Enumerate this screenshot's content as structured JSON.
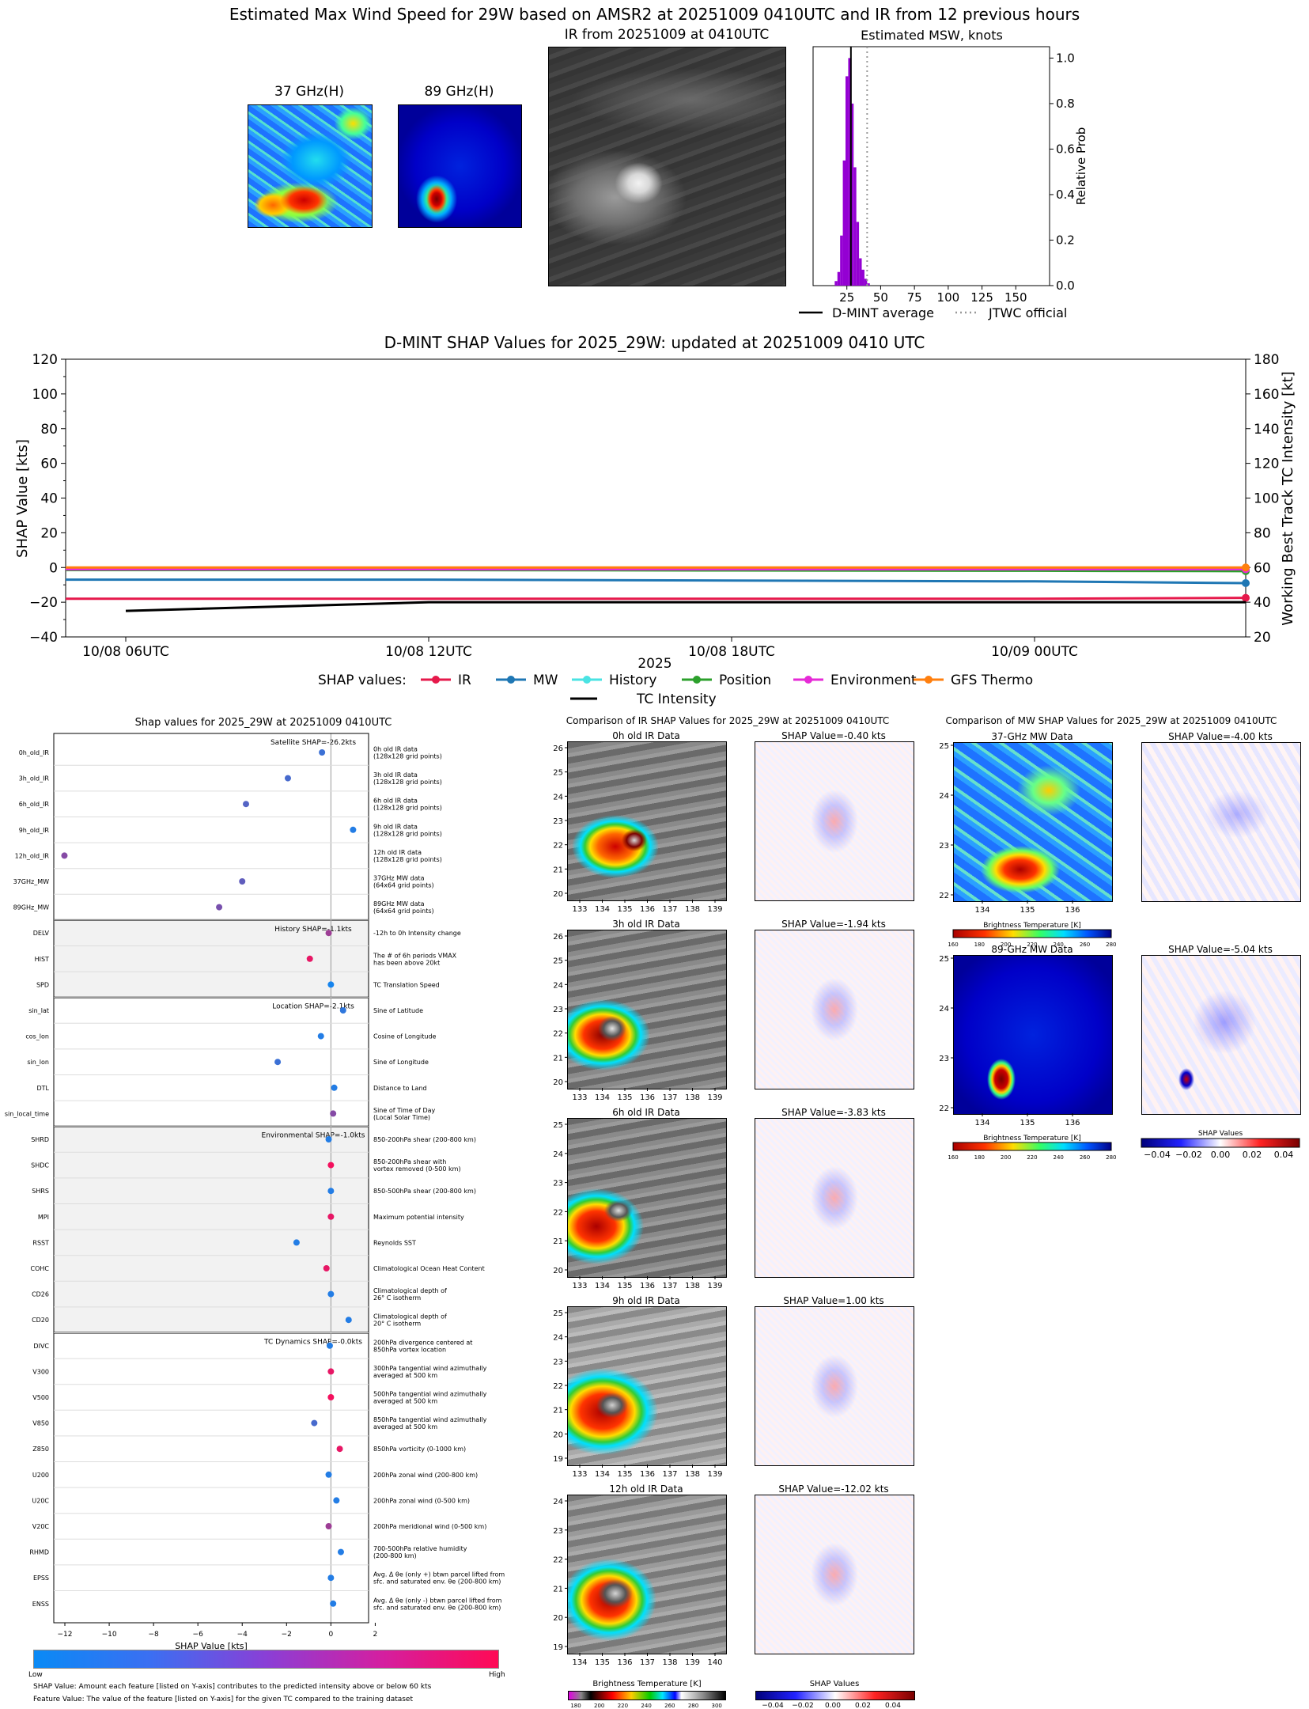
{
  "top": {
    "suptitle": "Estimated Max Wind Speed for 29W based on AMSR2 at 20251009 0410UTC and IR from 12 previous hours",
    "panel_37": "37 GHz(H)",
    "panel_89": "89 GHz(H)",
    "panel_ir": "IR from 20251009 at 0410UTC",
    "hist_title": "Estimated MSW, knots",
    "hist_ylabel": "Relative Prob",
    "hist_xticks": [
      "25",
      "50",
      "75",
      "100",
      "125",
      "150"
    ],
    "hist_yticks": [
      "0.0",
      "0.2",
      "0.4",
      "0.6",
      "0.8",
      "1.0"
    ],
    "legend_dmint": "D-MINT average",
    "legend_jtwc": "JTWC official"
  },
  "ts": {
    "title": "D-MINT SHAP Values for 2025_29W: updated at 20251009 0410 UTC",
    "ylabel_left": "SHAP Value [kts]",
    "ylabel_right": "Working Best Track TC Intensity [kt]",
    "xlabel": "2025",
    "yticks_left": [
      "120",
      "100",
      "80",
      "60",
      "40",
      "20",
      "0",
      "−20",
      "−40"
    ],
    "yticks_right": [
      "180",
      "160",
      "140",
      "120",
      "100",
      "80",
      "60",
      "40",
      "20"
    ],
    "xticks": [
      "10/08 06UTC",
      "10/08 12UTC",
      "10/08 18UTC",
      "10/09 00UTC"
    ],
    "legend_prefix": "SHAP values:",
    "legend_items": [
      "IR",
      "MW",
      "History",
      "Position",
      "Environment",
      "GFS Thermo"
    ],
    "legend_tc": "TC Intensity",
    "colors": {
      "IR": "#e6194b",
      "MW": "#1f77b4",
      "History": "#4ae3e3",
      "Position": "#2ca02c",
      "Environment": "#e62ad6",
      "GFS Thermo": "#ff7f0e",
      "TC": "#000000"
    }
  },
  "shap": {
    "title": "Shap values for 2025_29W at 20251009 0410UTC",
    "xlabel": "SHAP Value [kts]",
    "xticks": [
      "−12",
      "−10",
      "−8",
      "−6",
      "−4",
      "−2",
      "0",
      "2"
    ],
    "group_labels": [
      "Satellite SHAP=-26.2kts",
      "History SHAP=-1.1kts",
      "Location SHAP=-2.1kts",
      "Environmental SHAP=-1.0kts",
      "TC Dynamics SHAP=-0.0kts"
    ],
    "features": [
      {
        "name": "0h_old_IR",
        "desc": [
          "0h old IR data",
          "(128x128 grid points)"
        ]
      },
      {
        "name": "3h_old_IR",
        "desc": [
          "3h old IR data",
          "(128x128 grid points)"
        ]
      },
      {
        "name": "6h_old_IR",
        "desc": [
          "6h old IR data",
          "(128x128 grid points)"
        ]
      },
      {
        "name": "9h_old_IR",
        "desc": [
          "9h old IR data",
          "(128x128 grid points)"
        ]
      },
      {
        "name": "12h_old_IR",
        "desc": [
          "12h old IR data",
          "(128x128 grid points)"
        ]
      },
      {
        "name": "37GHz_MW",
        "desc": [
          "37GHz MW data",
          "(64x64 grid points)"
        ]
      },
      {
        "name": "89GHz_MW",
        "desc": [
          "89GHz MW data",
          "(64x64 grid points)"
        ]
      },
      {
        "name": "DELV",
        "desc": [
          "-12h to 0h Intensity change"
        ]
      },
      {
        "name": "HIST",
        "desc": [
          "The # of 6h periods VMAX",
          "has been above 20kt"
        ]
      },
      {
        "name": "SPD",
        "desc": [
          "TC Translation Speed"
        ]
      },
      {
        "name": "sin_lat",
        "desc": [
          "Sine of Latitude"
        ]
      },
      {
        "name": "cos_lon",
        "desc": [
          "Cosine of Longitude"
        ]
      },
      {
        "name": "sin_lon",
        "desc": [
          "Sine of Longitude"
        ]
      },
      {
        "name": "DTL",
        "desc": [
          "Distance to Land"
        ]
      },
      {
        "name": "sin_local_time",
        "desc": [
          "Sine of Time of Day",
          "(Local Solar Time)"
        ]
      },
      {
        "name": "SHRD",
        "desc": [
          "850-200hPa shear (200-800 km)"
        ]
      },
      {
        "name": "SHDC",
        "desc": [
          "850-200hPa shear with",
          "vortex removed (0-500 km)"
        ]
      },
      {
        "name": "SHRS",
        "desc": [
          "850-500hPa shear (200-800 km)"
        ]
      },
      {
        "name": "MPI",
        "desc": [
          "Maximum potential intensity"
        ]
      },
      {
        "name": "RSST",
        "desc": [
          "Reynolds SST"
        ]
      },
      {
        "name": "COHC",
        "desc": [
          "Climatological Ocean Heat Content"
        ]
      },
      {
        "name": "CD26",
        "desc": [
          "Climatological depth of",
          "26° C isotherm"
        ]
      },
      {
        "name": "CD20",
        "desc": [
          "Climatological depth of",
          "20° C isotherm"
        ]
      },
      {
        "name": "DIVC",
        "desc": [
          "200hPa divergence centered at",
          "850hPa vortex location"
        ]
      },
      {
        "name": "V300",
        "desc": [
          "300hPa tangential wind azimuthally",
          "averaged at 500 km"
        ]
      },
      {
        "name": "V500",
        "desc": [
          "500hPa tangential wind azimuthally",
          "averaged at 500 km"
        ]
      },
      {
        "name": "V850",
        "desc": [
          "850hPa tangential wind azimuthally",
          "averaged at 500 km"
        ]
      },
      {
        "name": "Z850",
        "desc": [
          "850hPa vorticity (0-1000 km)"
        ]
      },
      {
        "name": "U200",
        "desc": [
          "200hPa zonal wind (200-800 km)"
        ]
      },
      {
        "name": "U20C",
        "desc": [
          "200hPa zonal wind (0-500 km)"
        ]
      },
      {
        "name": "V20C",
        "desc": [
          "200hPa meridional wind (0-500 km)"
        ]
      },
      {
        "name": "RHMD",
        "desc": [
          "700-500hPa relative humidity",
          "(200-800 km)"
        ]
      },
      {
        "name": "EPSS",
        "desc": [
          "Avg. Δ θe (only +) btwn parcel lifted from",
          "sfc. and saturated env. θe (200-800 km)"
        ]
      },
      {
        "name": "ENSS",
        "desc": [
          "Avg. Δ θe (only -) btwn parcel lifted from",
          "sfc. and saturated env. θe (200-800 km)"
        ]
      }
    ],
    "cbar_low": "Low",
    "cbar_high": "High",
    "note1": "SHAP Value: Amount each feature [listed on Y-axis] contributes to the predicted intensity above or below 60 kts",
    "note2": "Feature Value: The value of the feature [listed on Y-axis] for the given TC compared to the training dataset"
  },
  "ir_compare": {
    "title": "Comparison of IR SHAP Values for 2025_29W at 20251009 0410UTC",
    "panels": [
      {
        "label": "0h old IR Data",
        "shap": "SHAP Value=-0.40 kts",
        "yticks": [
          "26",
          "25",
          "24",
          "23",
          "22",
          "21",
          "20"
        ]
      },
      {
        "label": "3h old IR Data",
        "shap": "SHAP Value=-1.94 kts",
        "yticks": [
          "26",
          "25",
          "24",
          "23",
          "22",
          "21",
          "20"
        ]
      },
      {
        "label": "6h old IR Data",
        "shap": "SHAP Value=-3.83 kts",
        "yticks": [
          "25",
          "24",
          "23",
          "22",
          "21",
          "20"
        ]
      },
      {
        "label": "9h old IR Data",
        "shap": "SHAP Value=1.00 kts",
        "yticks": [
          "25",
          "24",
          "23",
          "22",
          "21",
          "20",
          "19"
        ]
      },
      {
        "label": "12h old IR Data",
        "shap": "SHAP Value=-12.02 kts",
        "yticks": [
          "24",
          "23",
          "22",
          "21",
          "20",
          "19"
        ]
      }
    ],
    "xticks": [
      "133",
      "134",
      "135",
      "136",
      "137",
      "138",
      "139"
    ],
    "xticks_last": [
      "134",
      "135",
      "136",
      "137",
      "138",
      "139",
      "140"
    ],
    "cbar_bt_label": "Brightness Temperature [K]",
    "cbar_bt_ticks": [
      "180",
      "200",
      "220",
      "240",
      "260",
      "280",
      "300"
    ],
    "cbar_shap_label": "SHAP Values",
    "cbar_shap_ticks": [
      "−0.04",
      "−0.02",
      "0.00",
      "0.02",
      "0.04"
    ]
  },
  "mw_compare": {
    "title": "Comparison of MW SHAP Values for 2025_29W at 20251009 0410UTC",
    "panels": [
      {
        "label": "37-GHz MW Data",
        "shap": "SHAP Value=-4.00 kts"
      },
      {
        "label": "89-GHz MW Data",
        "shap": "SHAP Value=-5.04 kts"
      }
    ],
    "yticks": [
      "25",
      "24",
      "23",
      "22"
    ],
    "xticks": [
      "134",
      "135",
      "136"
    ],
    "cbar_bt_label": "Brightness Temperature [K]",
    "cbar_bt_ticks": [
      "160",
      "180",
      "200",
      "220",
      "240",
      "260",
      "280"
    ],
    "cbar_shap_label": "SHAP Values",
    "cbar_shap_ticks": [
      "−0.04",
      "−0.02",
      "0.00",
      "0.02",
      "0.04"
    ]
  },
  "chart_data": [
    {
      "type": "bar",
      "title": "Estimated MSW, knots",
      "ylabel": "Relative Prob",
      "xlim": [
        0,
        175
      ],
      "ylim": [
        0,
        1.05
      ],
      "bins_x": [
        17,
        19,
        21,
        23,
        25,
        27,
        29,
        31,
        33,
        35,
        37,
        39,
        41
      ],
      "bins_y": [
        0.02,
        0.06,
        0.22,
        0.55,
        0.92,
        1.0,
        0.8,
        0.52,
        0.28,
        0.12,
        0.07,
        0.03,
        0.01
      ],
      "lines": [
        {
          "name": "D-MINT average",
          "x": 28,
          "style": "solid"
        },
        {
          "name": "JTWC official",
          "x": 40,
          "style": "dotted"
        }
      ]
    },
    {
      "type": "line",
      "title": "D-MINT SHAP Values for 2025_29W: updated at 20251009 0410 UTC",
      "xlabel": "2025",
      "ylabel": "SHAP Value [kts]",
      "ylim": [
        -40,
        120
      ],
      "y2label": "Working Best Track TC Intensity [kt]",
      "y2lim": [
        20,
        180
      ],
      "x": [
        "10/08 06UTC",
        "10/08 12UTC",
        "10/08 18UTC",
        "10/09 00UTC",
        "10/09 04UTC"
      ],
      "series": [
        {
          "name": "IR",
          "values": [
            -18,
            -18,
            -18,
            -18,
            -17.5
          ]
        },
        {
          "name": "MW",
          "values": [
            -7,
            -7,
            -7.5,
            -8,
            -9
          ]
        },
        {
          "name": "History",
          "values": [
            -1,
            -1,
            -1,
            -1,
            -1.1
          ]
        },
        {
          "name": "Position",
          "values": [
            -1.5,
            -1.5,
            -1.7,
            -1.9,
            -2.1
          ]
        },
        {
          "name": "Environment",
          "values": [
            -1,
            -1,
            -1,
            -1,
            -1
          ]
        },
        {
          "name": "GFS Thermo",
          "values": [
            0,
            0,
            0,
            0,
            0
          ]
        },
        {
          "name": "TC Intensity",
          "axis": "right",
          "values": [
            35,
            40,
            40,
            40,
            40
          ]
        }
      ]
    },
    {
      "type": "scatter",
      "title": "Shap values for 2025_29W at 20251009 0410UTC",
      "xlabel": "SHAP Value [kts]",
      "xlim": [
        -12.5,
        1.7
      ],
      "points": [
        {
          "feature": "0h_old_IR",
          "shap": -0.4,
          "value": 0.2
        },
        {
          "feature": "3h_old_IR",
          "shap": -1.94,
          "value": 0.25
        },
        {
          "feature": "6h_old_IR",
          "shap": -3.83,
          "value": 0.3
        },
        {
          "feature": "9h_old_IR",
          "shap": 1.0,
          "value": 0.1
        },
        {
          "feature": "12h_old_IR",
          "shap": -12.02,
          "value": 0.5
        },
        {
          "feature": "37GHz_MW",
          "shap": -4.0,
          "value": 0.35
        },
        {
          "feature": "89GHz_MW",
          "shap": -5.04,
          "value": 0.45
        },
        {
          "feature": "DELV",
          "shap": -0.1,
          "value": 0.6
        },
        {
          "feature": "HIST",
          "shap": -0.95,
          "value": 0.9
        },
        {
          "feature": "SPD",
          "shap": 0.0,
          "value": 0.05
        },
        {
          "feature": "sin_lat",
          "shap": 0.55,
          "value": 0.15
        },
        {
          "feature": "cos_lon",
          "shap": -0.45,
          "value": 0.1
        },
        {
          "feature": "sin_lon",
          "shap": -2.4,
          "value": 0.2
        },
        {
          "feature": "DTL",
          "shap": 0.15,
          "value": 0.1
        },
        {
          "feature": "sin_local_time",
          "shap": 0.1,
          "value": 0.5
        },
        {
          "feature": "SHRD",
          "shap": -0.1,
          "value": 0.1
        },
        {
          "feature": "SHDC",
          "shap": 0.0,
          "value": 0.95
        },
        {
          "feature": "SHRS",
          "shap": 0.0,
          "value": 0.1
        },
        {
          "feature": "MPI",
          "shap": 0.0,
          "value": 0.9
        },
        {
          "feature": "RSST",
          "shap": -1.55,
          "value": 0.1
        },
        {
          "feature": "COHC",
          "shap": -0.2,
          "value": 0.9
        },
        {
          "feature": "CD26",
          "shap": 0.0,
          "value": 0.1
        },
        {
          "feature": "CD20",
          "shap": 0.8,
          "value": 0.1
        },
        {
          "feature": "DIVC",
          "shap": -0.05,
          "value": 0.1
        },
        {
          "feature": "V300",
          "shap": 0.0,
          "value": 0.9
        },
        {
          "feature": "V500",
          "shap": 0.0,
          "value": 0.95
        },
        {
          "feature": "V850",
          "shap": -0.75,
          "value": 0.25
        },
        {
          "feature": "Z850",
          "shap": 0.4,
          "value": 0.9
        },
        {
          "feature": "U200",
          "shap": -0.1,
          "value": 0.1
        },
        {
          "feature": "U20C",
          "shap": 0.25,
          "value": 0.1
        },
        {
          "feature": "V20C",
          "shap": -0.1,
          "value": 0.6
        },
        {
          "feature": "RHMD",
          "shap": 0.45,
          "value": 0.1
        },
        {
          "feature": "EPSS",
          "shap": 0.0,
          "value": 0.1
        },
        {
          "feature": "ENSS",
          "shap": 0.1,
          "value": 0.1
        }
      ]
    }
  ]
}
